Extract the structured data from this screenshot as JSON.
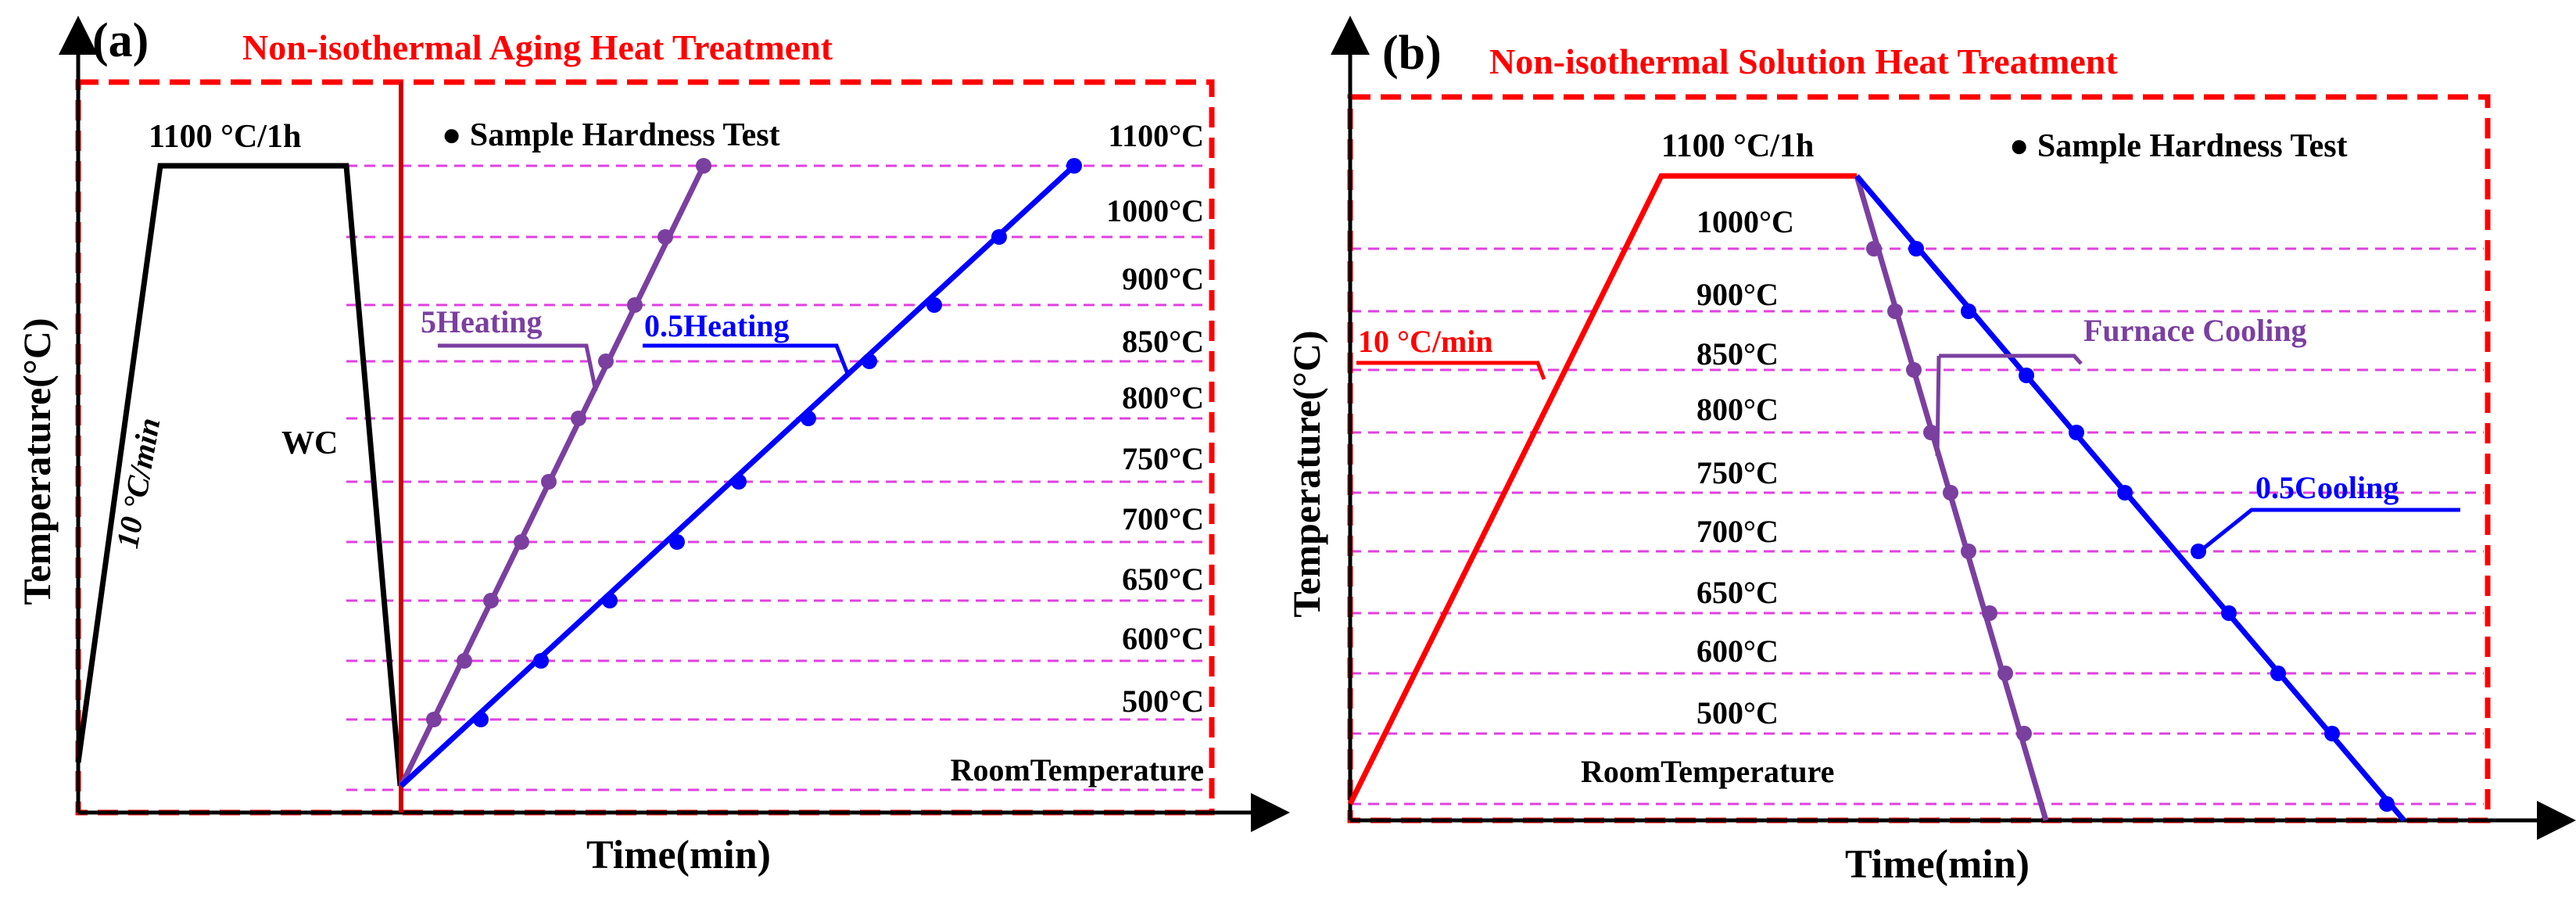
{
  "colors": {
    "frame": "#ff0000",
    "title": "#ff0000",
    "guide": "#e040e0",
    "purple": "#7b3fa0",
    "blue": "#0000ff",
    "black": "#000000",
    "red": "#ff0000"
  },
  "panel_a": {
    "letter": "(a)",
    "title": "Non-isothermal Aging Heat Treatment",
    "ylabel": "Temperature(°C)",
    "xlabel": "Time(min)",
    "hold_label": "1100 °C/1h",
    "ramp_label": "10 °C/min",
    "quench_label": "WC",
    "legend_label": "●  Sample Hardness Test",
    "room_label": "RoomTemperature",
    "temperature_labels": [
      "1100°C",
      "1000°C",
      "900°C",
      "850°C",
      "800°C",
      "750°C",
      "700°C",
      "650°C",
      "600°C",
      "500°C"
    ],
    "series": [
      {
        "name": "5Heating",
        "color_key": "purple",
        "rate": 5
      },
      {
        "name": "0.5Heating",
        "color_key": "blue",
        "rate": 0.5
      }
    ]
  },
  "panel_b": {
    "letter": "(b)",
    "title": "Non-isothermal Solution Heat Treatment",
    "ylabel": "Temperature(°C)",
    "xlabel": "Time(min)",
    "hold_label": "1100 °C/1h",
    "ramp_label": "10 °C/min",
    "legend_label": "●  Sample Hardness Test",
    "room_label": "RoomTemperature",
    "temperature_labels": [
      "1000°C",
      "900°C",
      "850°C",
      "800°C",
      "750°C",
      "700°C",
      "650°C",
      "600°C",
      "500°C"
    ],
    "series": [
      {
        "name": "Furnace Cooling",
        "color_key": "purple"
      },
      {
        "name": "0.5Cooling",
        "color_key": "blue",
        "rate": 0.5
      }
    ]
  }
}
